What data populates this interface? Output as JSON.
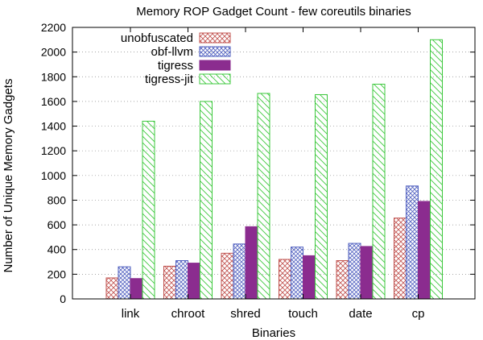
{
  "chart_data": {
    "type": "bar",
    "title": "Memory ROP Gadget Count - few coreutils binaries",
    "xlabel": "Binaries",
    "ylabel": "Number of Unique Memory Gadgets",
    "ylim": [
      0,
      2200
    ],
    "yticks": [
      0,
      200,
      400,
      600,
      800,
      1000,
      1200,
      1400,
      1600,
      1800,
      2000,
      2200
    ],
    "grid": "horizontal dotted",
    "legend_position": "top-left",
    "categories": [
      "link",
      "chroot",
      "shred",
      "touch",
      "date",
      "cp"
    ],
    "series": [
      {
        "name": "unobfuscated",
        "color": "#c0504d",
        "pattern": "crosshatch",
        "values": [
          170,
          265,
          370,
          320,
          310,
          655
        ]
      },
      {
        "name": "obf-llvm",
        "color": "#4f5fbf",
        "pattern": "crosshatch",
        "values": [
          260,
          310,
          445,
          420,
          450,
          915
        ]
      },
      {
        "name": "tigress",
        "color": "#8b2c8f",
        "pattern": "solid",
        "values": [
          165,
          290,
          585,
          350,
          425,
          790
        ]
      },
      {
        "name": "tigress-jit",
        "color": "#3cc83c",
        "pattern": "diagonal",
        "values": [
          1440,
          1600,
          1665,
          1655,
          1740,
          2100
        ]
      }
    ]
  }
}
